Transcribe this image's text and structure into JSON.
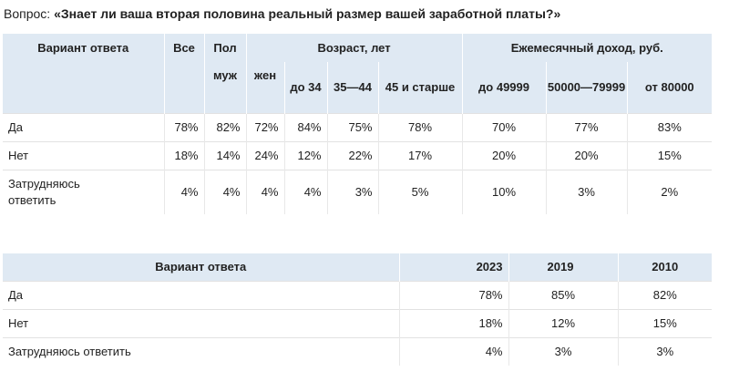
{
  "question": {
    "prefix": "Вопрос:",
    "text": "«Знает ли ваша вторая половина реальный размер вашей заработной платы?»"
  },
  "table1": {
    "header": {
      "option": "Вариант ответа",
      "all": "Все",
      "gender": "Пол",
      "age": "Возраст, лет",
      "income": "Ежемесячный доход, руб.",
      "sub": [
        "муж",
        "жен",
        "до 34",
        "35—44",
        "45 и старше",
        "до 49999",
        "50000—79999",
        "от 80000"
      ]
    },
    "rows": [
      {
        "label": "Да",
        "values": [
          "78%",
          "82%",
          "72%",
          "84%",
          "75%",
          "78%",
          "70%",
          "77%",
          "83%"
        ]
      },
      {
        "label": "Нет",
        "values": [
          "18%",
          "14%",
          "24%",
          "12%",
          "22%",
          "17%",
          "20%",
          "20%",
          "15%"
        ]
      },
      {
        "label": "Затрудняюсь ответить",
        "values": [
          "4%",
          "4%",
          "4%",
          "4%",
          "3%",
          "5%",
          "10%",
          "3%",
          "2%"
        ]
      }
    ]
  },
  "table2": {
    "header": [
      "Вариант ответа",
      "2023",
      "2019",
      "2010"
    ],
    "rows": [
      {
        "label": "Да",
        "values": [
          "78%",
          "85%",
          "82%"
        ]
      },
      {
        "label": "Нет",
        "values": [
          "18%",
          "12%",
          "15%"
        ]
      },
      {
        "label": "Затрудняюсь ответить",
        "values": [
          "4%",
          "3%",
          "3%"
        ]
      }
    ]
  }
}
